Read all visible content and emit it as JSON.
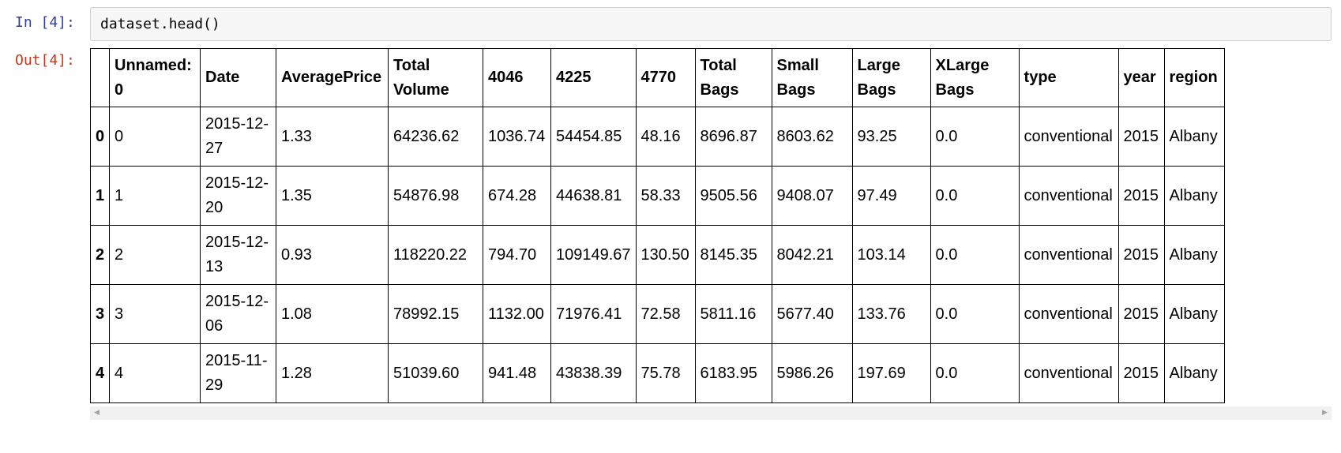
{
  "cell": {
    "in_prompt": "In [4]:",
    "out_prompt": "Out[4]:",
    "code": "dataset.head()"
  },
  "table": {
    "columns": [
      "",
      "Unnamed: 0",
      "Date",
      "AveragePrice",
      "Total Volume",
      "4046",
      "4225",
      "4770",
      "Total Bags",
      "Small Bags",
      "Large Bags",
      "XLarge Bags",
      "type",
      "year",
      "region"
    ],
    "rows": [
      [
        "0",
        "0",
        "2015-12-27",
        "1.33",
        "64236.62",
        "1036.74",
        "54454.85",
        "48.16",
        "8696.87",
        "8603.62",
        "93.25",
        "0.0",
        "conventional",
        "2015",
        "Albany"
      ],
      [
        "1",
        "1",
        "2015-12-20",
        "1.35",
        "54876.98",
        "674.28",
        "44638.81",
        "58.33",
        "9505.56",
        "9408.07",
        "97.49",
        "0.0",
        "conventional",
        "2015",
        "Albany"
      ],
      [
        "2",
        "2",
        "2015-12-13",
        "0.93",
        "118220.22",
        "794.70",
        "109149.67",
        "130.50",
        "8145.35",
        "8042.21",
        "103.14",
        "0.0",
        "conventional",
        "2015",
        "Albany"
      ],
      [
        "3",
        "3",
        "2015-12-06",
        "1.08",
        "78992.15",
        "1132.00",
        "71976.41",
        "72.58",
        "5811.16",
        "5677.40",
        "133.76",
        "0.0",
        "conventional",
        "2015",
        "Albany"
      ],
      [
        "4",
        "4",
        "2015-11-29",
        "1.28",
        "51039.60",
        "941.48",
        "43838.39",
        "75.78",
        "6183.95",
        "5986.26",
        "197.69",
        "0.0",
        "conventional",
        "2015",
        "Albany"
      ]
    ]
  },
  "scrollbar": {
    "left_icon": "scroll-left-arrow-icon",
    "right_icon": "scroll-right-arrow-icon"
  },
  "colors": {
    "in_prompt": "#303f9f",
    "out_prompt": "#c4391a",
    "input_background": "#f7f7f7"
  }
}
